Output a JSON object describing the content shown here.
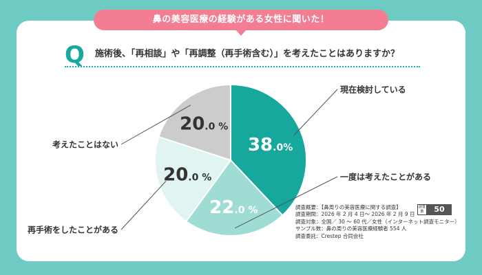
{
  "banner": "鼻の美容医療の経験がある女性に聞いた！",
  "question_mark": "Q",
  "question": "施術後、「再相談」や「再調整（再手術含む）」を考えたことはありますか？",
  "chart_data": {
    "type": "pie",
    "start": "top, clockwise",
    "slices": [
      {
        "label": "現在検討している",
        "value": 38.0,
        "value_text": "38",
        "unit": ".0%",
        "color": "#16a79d",
        "text_color": "#ffffff"
      },
      {
        "label": "一度は考えたことがある",
        "value": 22.0,
        "value_text": "22",
        "unit": ".0 %",
        "color": "#9fdcd3",
        "text_color": "#ffffff"
      },
      {
        "label": "再手術をしたことがある",
        "value": 20.0,
        "value_text": "20",
        "unit": ".0 %",
        "color": "#e0f4f1",
        "text_color": "#333333"
      },
      {
        "label": "考えたことはない",
        "value": 20.0,
        "value_text": "20",
        "unit": ".0 %",
        "color": "#cccccc",
        "text_color": "#333333"
      }
    ]
  },
  "survey_info": [
    "調査概要：【鼻周りの美容医療に関する調査】",
    "調査期間：2026 年 2 月 4 日～ 2026 年 2 月 9 日",
    "調査対象：全国／ 30 ～ 60 代／女性（インターネット調査モニター）",
    "サンプル数：鼻の周りの美容医療経験者 554 人",
    "調査委託：Crestep 合同会社"
  ],
  "n_label": "調査数",
  "n_value": "50",
  "colors": {
    "background": "#6ecbc3",
    "banner": "#f37e93",
    "accent": "#17a9a0",
    "leader_line": "#555555"
  }
}
